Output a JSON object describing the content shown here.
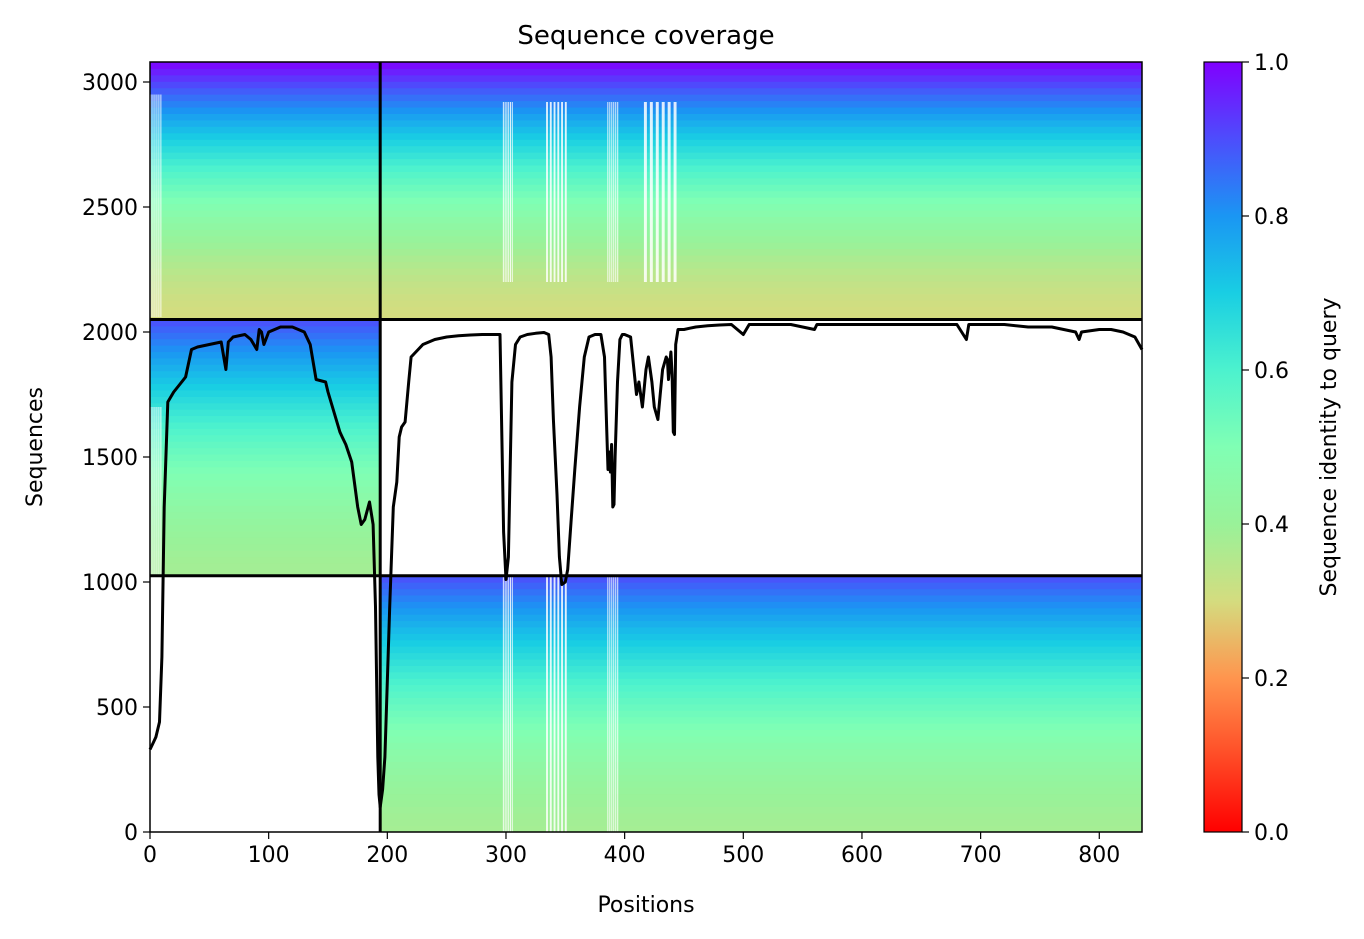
{
  "chart_data": {
    "type": "heatmap",
    "title": "Sequence coverage",
    "xlabel": "Positions",
    "ylabel": "Sequences",
    "xlim": [
      0,
      836
    ],
    "ylim": [
      0,
      3080
    ],
    "x_ticks": [
      0,
      100,
      200,
      300,
      400,
      500,
      600,
      700,
      800
    ],
    "y_ticks": [
      0,
      500,
      1000,
      1500,
      2000,
      2500,
      3000
    ],
    "colorbar": {
      "label": "Sequence identity to query",
      "range": [
        0,
        1
      ],
      "ticks": [
        "0.0",
        "0.2",
        "0.4",
        "0.6",
        "0.8",
        "1.0"
      ],
      "colormap": "rainbow_r"
    },
    "chain_boundaries": {
      "x": [
        194
      ],
      "y": [
        1025,
        2050
      ]
    },
    "blocks": [
      {
        "name": "lower",
        "x": [
          194,
          836
        ],
        "y": [
          0,
          1025
        ],
        "identity_bottom": 0.38,
        "identity_top": 0.9
      },
      {
        "name": "middle",
        "x": [
          0,
          194
        ],
        "y": [
          1025,
          2050
        ],
        "identity_bottom": 0.38,
        "identity_top": 0.9
      },
      {
        "name": "upper",
        "x": [
          0,
          836
        ],
        "y": [
          2050,
          3080
        ],
        "identity_bottom": 0.3,
        "identity_top": 1.0
      }
    ],
    "white_gaps": [
      {
        "x": [
          297,
          306
        ],
        "y": [
          0,
          1025
        ]
      },
      {
        "x": [
          333,
          352
        ],
        "y": [
          0,
          1025
        ]
      },
      {
        "x": [
          385,
          395
        ],
        "y": [
          0,
          1025
        ]
      },
      {
        "x": [
          297,
          306
        ],
        "y": [
          2200,
          2920
        ]
      },
      {
        "x": [
          333,
          352
        ],
        "y": [
          2200,
          2920
        ]
      },
      {
        "x": [
          385,
          395
        ],
        "y": [
          2200,
          2920
        ]
      },
      {
        "x": [
          415,
          445
        ],
        "y": [
          2200,
          2920
        ]
      },
      {
        "x": [
          0,
          10
        ],
        "y": [
          2060,
          2950
        ]
      },
      {
        "x": [
          0,
          10
        ],
        "y": [
          1030,
          1700
        ]
      }
    ],
    "coverage_line": {
      "x": [
        0,
        3,
        5,
        8,
        10,
        12,
        15,
        20,
        25,
        30,
        35,
        40,
        50,
        60,
        64,
        66,
        70,
        80,
        85,
        90,
        92,
        94,
        96,
        100,
        110,
        120,
        130,
        135,
        140,
        148,
        150,
        160,
        162,
        165,
        170,
        175,
        178,
        181,
        185,
        188,
        190,
        192,
        193,
        194,
        196,
        198,
        200,
        202,
        205,
        208,
        210,
        212,
        215,
        218,
        220,
        230,
        240,
        250,
        260,
        270,
        280,
        290,
        295,
        298,
        300,
        302,
        305,
        308,
        312,
        318,
        325,
        332,
        336,
        338,
        340,
        343,
        345,
        347,
        350,
        352,
        355,
        358,
        362,
        366,
        370,
        375,
        380,
        383,
        385,
        386,
        387,
        388,
        389,
        390,
        391,
        392,
        394,
        396,
        398,
        400,
        405,
        410,
        412,
        415,
        418,
        420,
        423,
        425,
        428,
        430,
        432,
        435,
        436,
        437,
        438,
        439,
        440,
        441,
        442,
        443,
        445,
        450,
        455,
        460,
        470,
        480,
        490,
        500,
        505,
        510,
        520,
        540,
        560,
        562,
        580,
        600,
        620,
        640,
        660,
        680,
        688,
        690,
        700,
        720,
        740,
        760,
        780,
        783,
        785,
        800,
        810,
        820,
        830,
        836
      ],
      "y": [
        330,
        360,
        380,
        440,
        700,
        1300,
        1720,
        1760,
        1790,
        1820,
        1930,
        1940,
        1950,
        1960,
        1850,
        1960,
        1980,
        1990,
        1970,
        1930,
        2010,
        2000,
        1950,
        2000,
        2020,
        2020,
        2000,
        1950,
        1810,
        1800,
        1760,
        1600,
        1580,
        1550,
        1480,
        1300,
        1230,
        1250,
        1320,
        1230,
        900,
        300,
        150,
        100,
        170,
        300,
        600,
        900,
        1300,
        1400,
        1580,
        1620,
        1640,
        1800,
        1900,
        1950,
        1970,
        1980,
        1985,
        1988,
        1990,
        1990,
        1990,
        1200,
        1010,
        1100,
        1800,
        1950,
        1980,
        1990,
        1995,
        1998,
        1990,
        1900,
        1650,
        1350,
        1100,
        990,
        1000,
        1050,
        1250,
        1450,
        1700,
        1900,
        1980,
        1990,
        1990,
        1900,
        1600,
        1450,
        1520,
        1440,
        1550,
        1300,
        1310,
        1500,
        1800,
        1970,
        1990,
        1990,
        1980,
        1750,
        1800,
        1700,
        1850,
        1900,
        1800,
        1700,
        1650,
        1750,
        1850,
        1900,
        1890,
        1810,
        1870,
        1920,
        1830,
        1600,
        1590,
        1950,
        2010,
        2010,
        2015,
        2020,
        2025,
        2028,
        2030,
        1990,
        2030,
        2030,
        2030,
        2030,
        2010,
        2030,
        2030,
        2030,
        2030,
        2030,
        2030,
        2030,
        1970,
        2030,
        2030,
        2030,
        2020,
        2020,
        2000,
        1970,
        2000,
        2010,
        2010,
        2000,
        1980,
        1930
      ]
    }
  }
}
